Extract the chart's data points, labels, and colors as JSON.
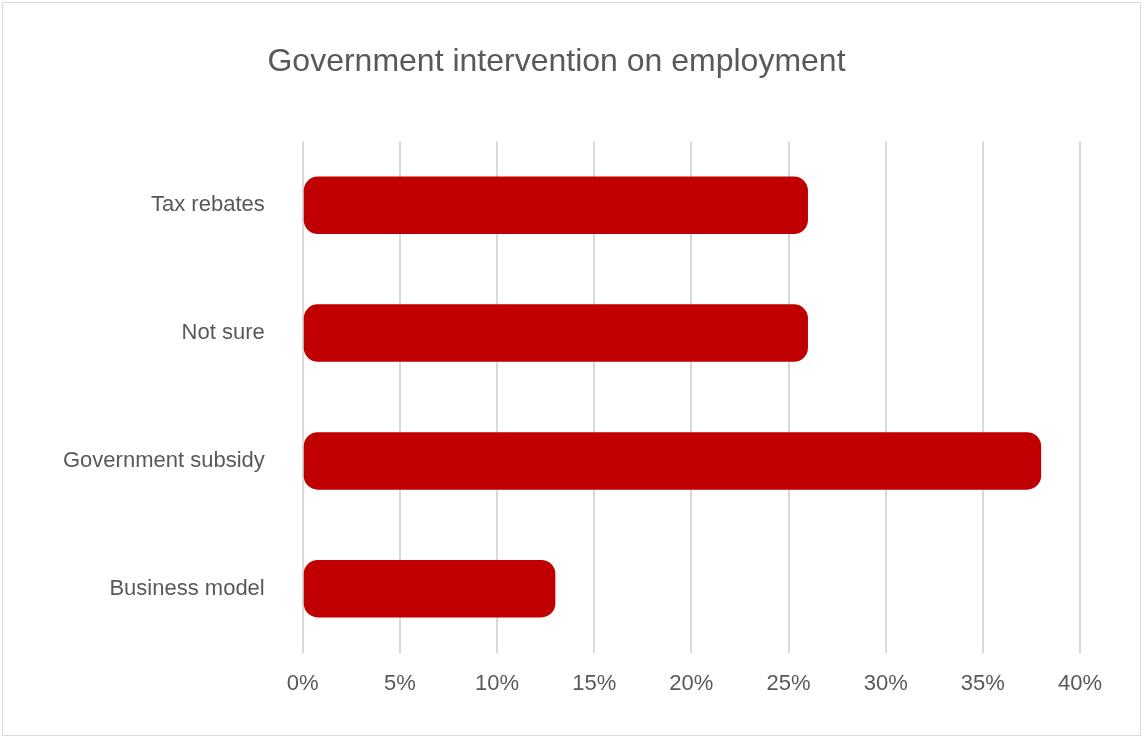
{
  "chart_data": {
    "type": "bar",
    "orientation": "horizontal",
    "title": "Government intervention on employment",
    "categories": [
      "Tax rebates",
      "Not sure",
      "Government subsidy",
      "Business model"
    ],
    "values": [
      26,
      26,
      38,
      13
    ],
    "color": "#c00000",
    "xlim": [
      0,
      40
    ],
    "xticks": [
      {
        "value": 0,
        "label": "0%"
      },
      {
        "value": 5,
        "label": "5%"
      },
      {
        "value": 10,
        "label": "10%"
      },
      {
        "value": 15,
        "label": "15%"
      },
      {
        "value": 20,
        "label": "20%"
      },
      {
        "value": 25,
        "label": "25%"
      },
      {
        "value": 30,
        "label": "30%"
      },
      {
        "value": 35,
        "label": "35%"
      },
      {
        "value": 40,
        "label": "40%"
      }
    ],
    "grid": "x",
    "legend": false
  }
}
